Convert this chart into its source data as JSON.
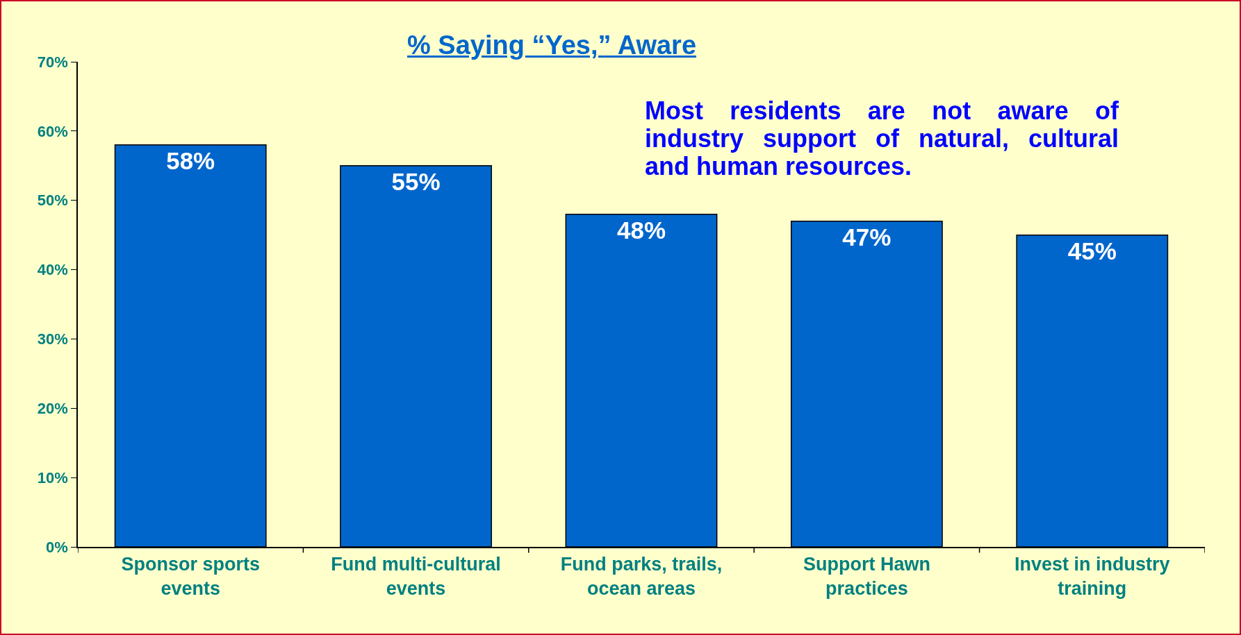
{
  "chart_data": {
    "type": "bar",
    "title": "% Saying “Yes,” Aware",
    "annotations": [
      "Most residents are not aware of industry support of natural, cultural and human resources."
    ],
    "categories": [
      "Sponsor sports events",
      "Fund multi-cultural events",
      "Fund parks, trails, ocean areas",
      "Support Hawn practices",
      "Invest in industry training"
    ],
    "values": [
      58,
      55,
      48,
      47,
      45
    ],
    "value_labels": [
      "58%",
      "55%",
      "48%",
      "47%",
      "45%"
    ],
    "color": "#0066cc",
    "ylim": [
      0,
      70
    ],
    "yticks": [
      {
        "value": 0,
        "label": "0%"
      },
      {
        "value": 10,
        "label": "10%"
      },
      {
        "value": 20,
        "label": "20%"
      },
      {
        "value": 30,
        "label": "30%"
      },
      {
        "value": 40,
        "label": "40%"
      },
      {
        "value": 50,
        "label": "50%"
      },
      {
        "value": 60,
        "label": "60%"
      },
      {
        "value": 70,
        "label": "70%"
      }
    ],
    "grid": false
  }
}
